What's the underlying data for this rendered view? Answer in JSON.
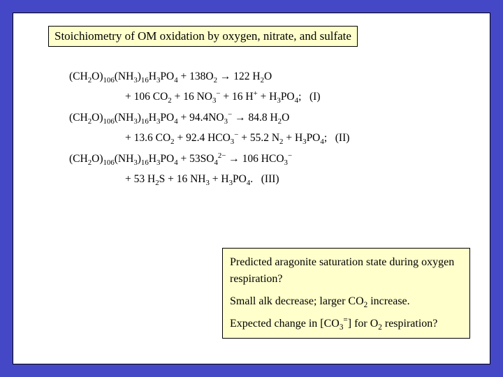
{
  "colors": {
    "page_background": "#4548c6",
    "content_background": "#ffffff",
    "box_background": "#ffffcc",
    "border": "#000000",
    "text": "#000000"
  },
  "title": {
    "text": "Stoichiometry of OM oxidation by oxygen, nitrate, and sulfate",
    "fontsize": 17
  },
  "equations": {
    "fontsize": 15.5,
    "line1a": "(CH₂O)₁₀₆(NH₃)₁₆H₃PO₄ + 138O₂ → 122 H₂O",
    "line1b": "+ 106 CO₂ + 16 NO₃⁻ + 16 H⁺ + H₃PO₄;   (I)",
    "line2a": "(CH₂O)₁₀₆(NH₃)₁₆H₃PO₄ + 94.4NO₃⁻ → 84.8 H₂O",
    "line2b": "+ 13.6 CO₂ + 92.4 HCO₃⁻ + 55.2 N₂ + H₃PO₄;   (II)",
    "line3a": "(CH₂O)₁₀₆(NH₃)₁₆H₃PO₄ + 53SO₄²⁻ → 106 HCO₃⁻",
    "line3b": "+ 53 H₂S + 16 NH₃ + H₃PO₄.   (III)"
  },
  "bottom": {
    "q1": "Predicted aragonite saturation state during oxygen respiration?",
    "q2_pre": "Small alk decrease; larger CO",
    "q2_sub": "2",
    "q2_post": " increase.",
    "q3_pre": "Expected change in [CO",
    "q3_sub": "3",
    "q3_sup": "=",
    "q3_mid": "] for O",
    "q3_sub2": "2",
    "q3_post": " respiration?",
    "fontsize": 16
  }
}
